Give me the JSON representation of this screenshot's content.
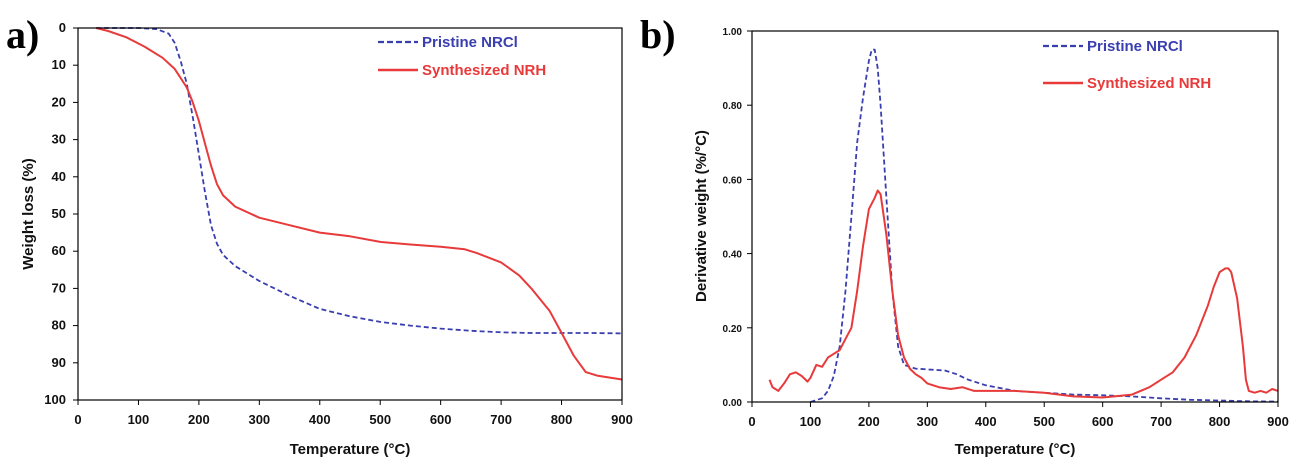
{
  "chart_data": [
    {
      "type": "line",
      "panel_label": "a)",
      "xlabel": "Temperature (°C)",
      "ylabel": "Weight loss (%)",
      "xlim": [
        0,
        900
      ],
      "ylim": [
        0,
        100
      ],
      "y_inverted": true,
      "xticks": [
        0,
        100,
        200,
        300,
        400,
        500,
        600,
        700,
        800,
        900
      ],
      "yticks": [
        0,
        10,
        20,
        30,
        40,
        50,
        60,
        70,
        80,
        90,
        100
      ],
      "grid": false,
      "legend_position": "top-right",
      "series": [
        {
          "name": "Pristine NRCl",
          "color": "#3a3fb0",
          "style": "dashed",
          "x": [
            30,
            60,
            100,
            130,
            150,
            160,
            170,
            180,
            190,
            200,
            210,
            220,
            230,
            240,
            260,
            300,
            350,
            400,
            450,
            500,
            550,
            600,
            650,
            700,
            750,
            800,
            850,
            900
          ],
          "y": [
            0,
            0,
            0,
            0.3,
            1.5,
            4,
            9,
            15,
            24,
            34,
            44,
            53,
            58,
            61,
            64,
            68,
            72,
            75.5,
            77.5,
            79,
            80,
            80.8,
            81.4,
            81.8,
            82,
            82,
            82,
            82.1
          ]
        },
        {
          "name": "Synthesized NRH",
          "color": "#e83a3a",
          "style": "solid",
          "x": [
            30,
            50,
            80,
            110,
            140,
            160,
            180,
            190,
            200,
            210,
            220,
            230,
            240,
            260,
            300,
            350,
            400,
            450,
            500,
            550,
            600,
            640,
            660,
            700,
            730,
            750,
            780,
            800,
            820,
            840,
            860,
            900
          ],
          "y": [
            0,
            0.8,
            2.5,
            5,
            8,
            11,
            16,
            20,
            25,
            31,
            37,
            42,
            45,
            48,
            51,
            53,
            55,
            56,
            57.5,
            58.2,
            58.8,
            59.5,
            60.5,
            63,
            66.5,
            70,
            76,
            82,
            88,
            92.5,
            93.5,
            94.5
          ]
        }
      ]
    },
    {
      "type": "line",
      "panel_label": "b)",
      "xlabel": "Temperature (°C)",
      "ylabel": "Derivative weight (%/°C)",
      "xlim": [
        0,
        900
      ],
      "ylim": [
        0,
        1
      ],
      "xticks": [
        0,
        100,
        200,
        300,
        400,
        500,
        600,
        700,
        800,
        900
      ],
      "yticks": [
        "0.00",
        "0.20",
        "0.40",
        "0.60",
        "0.80",
        "1.00"
      ],
      "grid": false,
      "legend_position": "top-right",
      "series": [
        {
          "name": "Pristine NRCl",
          "color": "#3a3fb0",
          "style": "dashed",
          "x": [
            100,
            110,
            120,
            130,
            140,
            150,
            160,
            170,
            180,
            190,
            200,
            205,
            210,
            215,
            220,
            230,
            240,
            250,
            260,
            270,
            280,
            300,
            330,
            350,
            370,
            400,
            450,
            500,
            550,
            600,
            650,
            700,
            750,
            800,
            850,
            900
          ],
          "y": [
            0,
            0.005,
            0.01,
            0.03,
            0.07,
            0.15,
            0.3,
            0.5,
            0.7,
            0.82,
            0.92,
            0.95,
            0.95,
            0.9,
            0.8,
            0.55,
            0.3,
            0.15,
            0.1,
            0.095,
            0.09,
            0.088,
            0.085,
            0.075,
            0.06,
            0.045,
            0.03,
            0.025,
            0.02,
            0.018,
            0.015,
            0.01,
            0.006,
            0.004,
            0.002,
            0.001
          ]
        },
        {
          "name": "Synthesized NRH",
          "color": "#e83a3a",
          "style": "solid",
          "x": [
            30,
            35,
            45,
            55,
            65,
            75,
            85,
            95,
            100,
            110,
            120,
            130,
            140,
            150,
            160,
            170,
            180,
            190,
            200,
            210,
            215,
            220,
            230,
            240,
            250,
            260,
            270,
            280,
            290,
            300,
            320,
            340,
            360,
            380,
            400,
            450,
            500,
            550,
            600,
            620,
            650,
            680,
            700,
            720,
            740,
            760,
            780,
            790,
            800,
            810,
            815,
            820,
            830,
            840,
            845,
            850,
            860,
            870,
            880,
            890,
            900
          ],
          "y": [
            0.06,
            0.04,
            0.03,
            0.05,
            0.075,
            0.08,
            0.07,
            0.055,
            0.065,
            0.1,
            0.095,
            0.12,
            0.13,
            0.14,
            0.17,
            0.2,
            0.3,
            0.42,
            0.52,
            0.55,
            0.57,
            0.56,
            0.45,
            0.3,
            0.18,
            0.12,
            0.09,
            0.075,
            0.065,
            0.05,
            0.04,
            0.035,
            0.04,
            0.03,
            0.03,
            0.03,
            0.025,
            0.015,
            0.012,
            0.015,
            0.02,
            0.04,
            0.06,
            0.08,
            0.12,
            0.18,
            0.26,
            0.31,
            0.35,
            0.36,
            0.36,
            0.35,
            0.28,
            0.15,
            0.06,
            0.03,
            0.025,
            0.03,
            0.025,
            0.035,
            0.03
          ]
        }
      ]
    }
  ]
}
